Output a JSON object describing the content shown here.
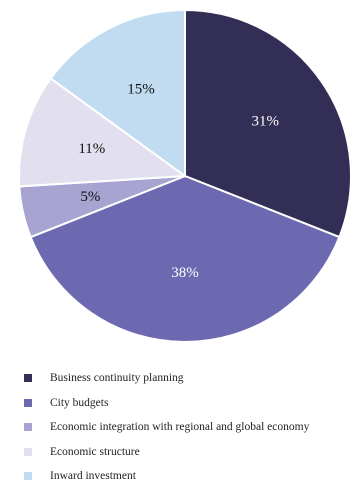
{
  "chart_data": {
    "type": "pie",
    "title": "",
    "legend_position": "bottom-left",
    "slices": [
      {
        "name": "Business continuity planning",
        "value": 31,
        "label": "31%",
        "color": "#322e55",
        "label_color": "#ffffff"
      },
      {
        "name": "City budgets",
        "value": 38,
        "label": "38%",
        "color": "#6d69b1",
        "label_color": "#ffffff"
      },
      {
        "name": "Economic integration with regional and global economy",
        "value": 5,
        "label": "5%",
        "color": "#a7a4d2",
        "label_color": "#111111"
      },
      {
        "name": "Economic structure",
        "value": 11,
        "label": "11%",
        "color": "#e2e0ee",
        "label_color": "#111111"
      },
      {
        "name": "Inward investment",
        "value": 15,
        "label": "15%",
        "color": "#c1dcf0",
        "label_color": "#111111"
      }
    ]
  }
}
